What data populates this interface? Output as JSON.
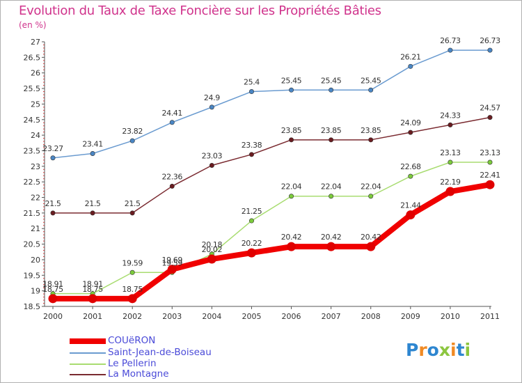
{
  "title": "Evolution du Taux de Taxe Foncière sur les Propriétés Bâties",
  "subtitle": "(en %)",
  "logo": {
    "text": "Proxiti",
    "letters": [
      "P",
      "r",
      "o",
      "x",
      "i",
      "t",
      "i"
    ],
    "colors": [
      "#2e86d0",
      "#f08a24",
      "#2e86d0",
      "#8cc63f",
      "#f08a24",
      "#2e86d0",
      "#8cc63f"
    ]
  },
  "chart_data": {
    "type": "line",
    "title": "Evolution du Taux de Taxe Foncière sur les Propriétés Bâties",
    "ylabel": "(en %)",
    "xlabel": "",
    "ylim": [
      18.5,
      27
    ],
    "yticks": [
      "18.5",
      "19",
      "19.5",
      "20",
      "20.5",
      "21",
      "21.5",
      "22",
      "22.5",
      "23",
      "23.5",
      "24",
      "24.5",
      "25",
      "25.5",
      "26",
      "26.5",
      "27"
    ],
    "categories": [
      "2000",
      "2001",
      "2002",
      "2003",
      "2004",
      "2005",
      "2006",
      "2007",
      "2008",
      "2009",
      "2010",
      "2011"
    ],
    "grid": false,
    "legend_position": "bottom-left",
    "series": [
      {
        "name": "Saint-Jean-de-Boiseau",
        "color": "#6a9bd0",
        "marker": "#4a86c4",
        "width": "normal",
        "values": [
          23.27,
          23.41,
          23.82,
          24.41,
          24.9,
          25.4,
          25.45,
          25.45,
          25.45,
          26.21,
          26.73,
          26.73
        ],
        "labels": [
          "23.27",
          "23.41",
          "23.82",
          "24.41",
          "24.9",
          "25.4",
          "25.45",
          "25.45",
          "25.45",
          "26.21",
          "26.73",
          "26.73"
        ]
      },
      {
        "name": "La Montagne",
        "color": "#7a2a30",
        "marker": "#6a1c20",
        "width": "normal",
        "values": [
          21.5,
          21.5,
          21.5,
          22.36,
          23.03,
          23.38,
          23.85,
          23.85,
          23.85,
          24.09,
          24.33,
          24.57
        ],
        "labels": [
          "21.5",
          "21.5",
          "21.5",
          "22.36",
          "23.03",
          "23.38",
          "23.85",
          "23.85",
          "23.85",
          "24.09",
          "24.33",
          "24.57"
        ]
      },
      {
        "name": "Le Pellerin",
        "color": "#a8dc70",
        "marker": "#7ccb3c",
        "width": "normal",
        "values": [
          18.91,
          18.91,
          19.59,
          19.59,
          20.18,
          21.25,
          22.04,
          22.04,
          22.04,
          22.68,
          23.13,
          23.13
        ],
        "labels": [
          "18.91",
          "18.91",
          "19.59",
          "19.59",
          "20.18",
          "21.25",
          "22.04",
          "22.04",
          "22.04",
          "22.68",
          "23.13",
          "23.13"
        ]
      },
      {
        "name": "COUëRON",
        "color": "#f00000",
        "marker": "#e00000",
        "width": "thick",
        "values": [
          18.75,
          18.75,
          18.75,
          19.69,
          20.02,
          20.22,
          20.42,
          20.42,
          20.42,
          21.44,
          22.19,
          22.41
        ],
        "labels": [
          "18.75",
          "18.75",
          "18.75",
          "19.69",
          "20.02",
          "20.22",
          "20.42",
          "20.42",
          "20.42",
          "21.44",
          "22.19",
          "22.41"
        ]
      }
    ],
    "legend": [
      "COUëRON",
      "Saint-Jean-de-Boiseau",
      "Le Pellerin",
      "La Montagne"
    ]
  }
}
